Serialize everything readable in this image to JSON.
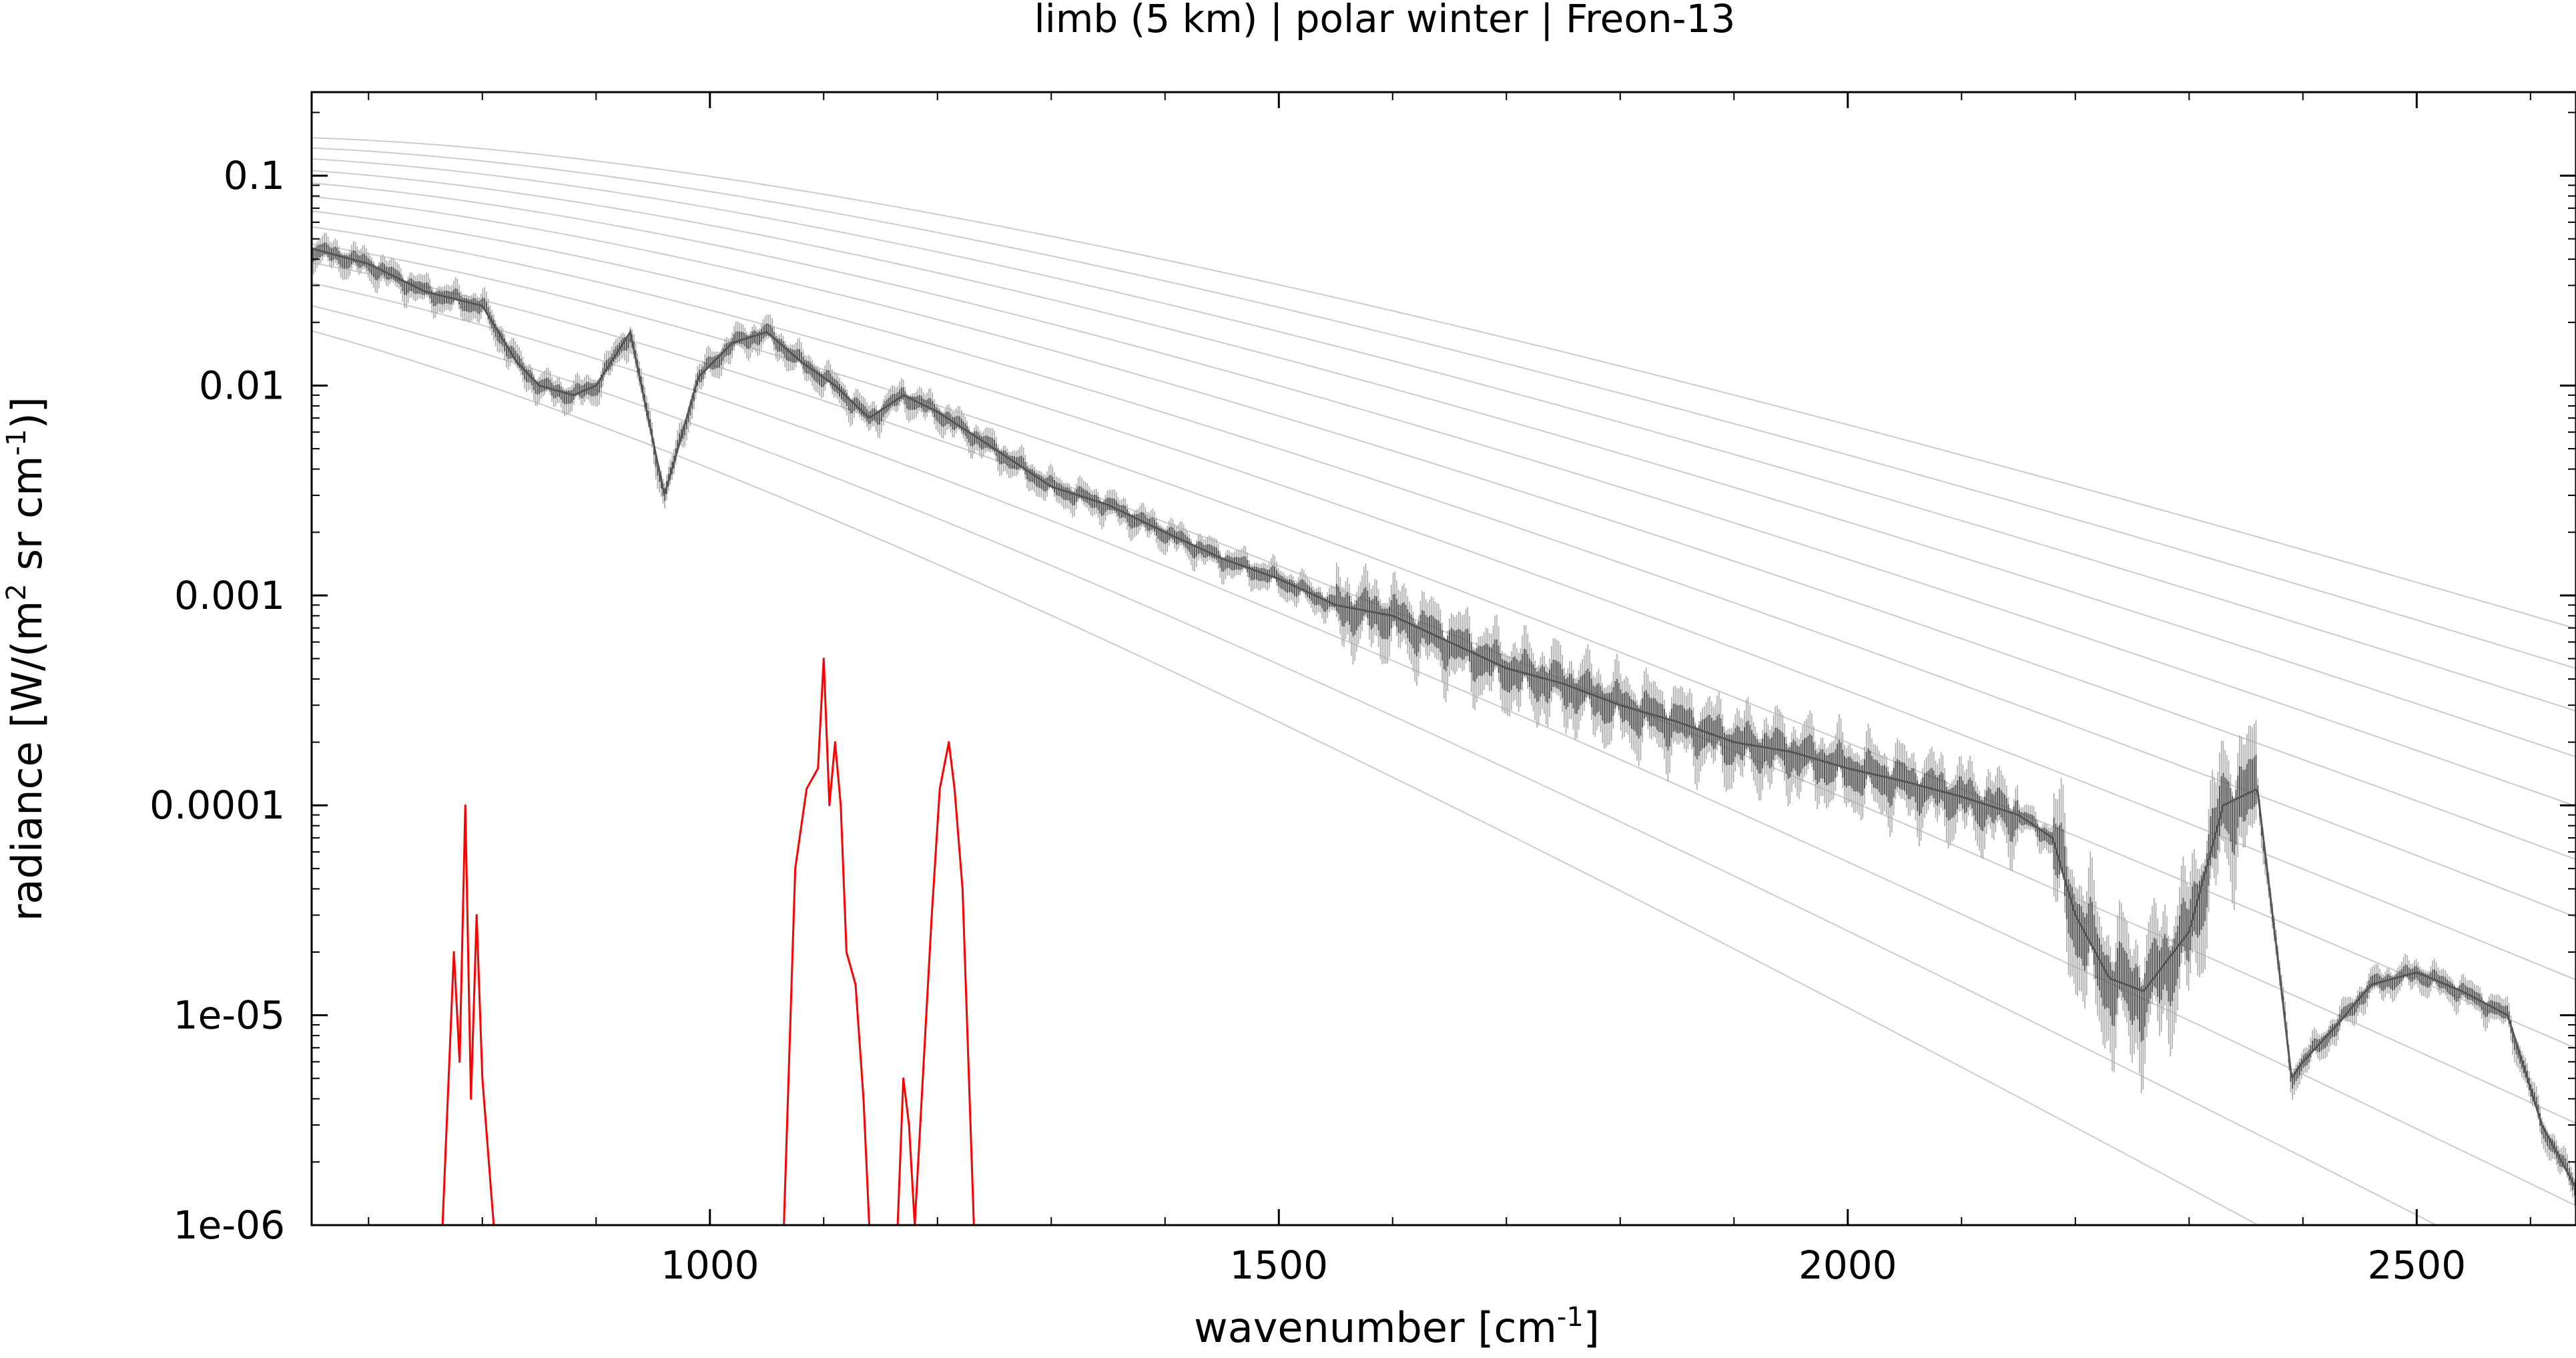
{
  "chart_data": {
    "type": "line",
    "title": "limb (5 km) | polar winter | Freon-13",
    "xlabel": "wavenumber [cm",
    "xlabel_sup": "-1",
    "xlabel_end": "]",
    "ylabel": "radiance [W/(m",
    "ylabel_sup1": "2",
    "ylabel_mid": " sr cm",
    "ylabel_sup2": "-1",
    "ylabel_end": ")]",
    "xlim": [
      650,
      2640
    ],
    "ylim": [
      1e-06,
      0.25
    ],
    "yscale": "log",
    "grid": false,
    "x_ticks": [
      1000,
      1500,
      2000,
      2500
    ],
    "x_tick_labels": [
      "1000",
      "1500",
      "2000",
      "2500"
    ],
    "y_ticks": [
      1e-06,
      1e-05,
      0.0001,
      0.001,
      0.01,
      0.1
    ],
    "y_tick_labels": [
      "1e-06",
      "1e-05",
      "0.0001",
      "0.001",
      "0.01",
      "0.1"
    ],
    "planck_temperatures": [
      180,
      190,
      200,
      210,
      220,
      230,
      240,
      250,
      260,
      270,
      280,
      290,
      300
    ],
    "colors": {
      "total": "#555555",
      "total_light": "#aaaaaa",
      "target": "#ff0000",
      "planck": "#cccccc"
    },
    "series": [
      {
        "role": "total",
        "x": [
          650,
          700,
          750,
          800,
          830,
          850,
          880,
          900,
          930,
          960,
          990,
          1020,
          1050,
          1080,
          1110,
          1140,
          1170,
          1200,
          1250,
          1300,
          1350,
          1400,
          1450,
          1500,
          1550,
          1600,
          1650,
          1700,
          1750,
          1800,
          1850,
          1900,
          1950,
          2000,
          2050,
          2100,
          2150,
          2180,
          2200,
          2230,
          2260,
          2300,
          2330,
          2360,
          2380,
          2390,
          2400,
          2430,
          2460,
          2500,
          2540,
          2580,
          2610,
          2640
        ],
        "y": [
          0.045,
          0.038,
          0.028,
          0.024,
          0.013,
          0.01,
          0.009,
          0.01,
          0.018,
          0.003,
          0.011,
          0.016,
          0.018,
          0.013,
          0.01,
          0.007,
          0.009,
          0.0075,
          0.005,
          0.0033,
          0.0027,
          0.002,
          0.0015,
          0.0012,
          0.0009,
          0.0008,
          0.0006,
          0.00045,
          0.00038,
          0.0003,
          0.00025,
          0.0002,
          0.00018,
          0.00015,
          0.00013,
          0.00011,
          9e-05,
          7e-05,
          3e-05,
          1.5e-05,
          1.3e-05,
          2.5e-05,
          0.0001,
          0.00012,
          1.5e-05,
          5e-06,
          6e-06,
          9e-06,
          1.4e-05,
          1.6e-05,
          1.3e-05,
          1e-05,
          3e-06,
          1.5e-06
        ]
      },
      {
        "role": "target",
        "x": [
          765,
          775,
          780,
          785,
          790,
          795,
          800,
          810,
          1065,
          1075,
          1085,
          1095,
          1100,
          1105,
          1110,
          1115,
          1120,
          1128,
          1135,
          1140,
          1165,
          1170,
          1175,
          1180,
          1195,
          1202,
          1210,
          1215,
          1222,
          1232
        ],
        "y": [
          1e-06,
          2e-05,
          6e-06,
          0.0001,
          4e-06,
          3e-05,
          5e-06,
          1e-06,
          1e-06,
          5e-05,
          0.00012,
          0.00015,
          0.0005,
          0.0001,
          0.0002,
          0.0001,
          2e-05,
          1.4e-05,
          4e-06,
          1e-06,
          1e-06,
          5e-06,
          3e-06,
          1e-06,
          3e-05,
          0.00012,
          0.0002,
          0.00012,
          4e-05,
          1e-06
        ]
      }
    ]
  }
}
